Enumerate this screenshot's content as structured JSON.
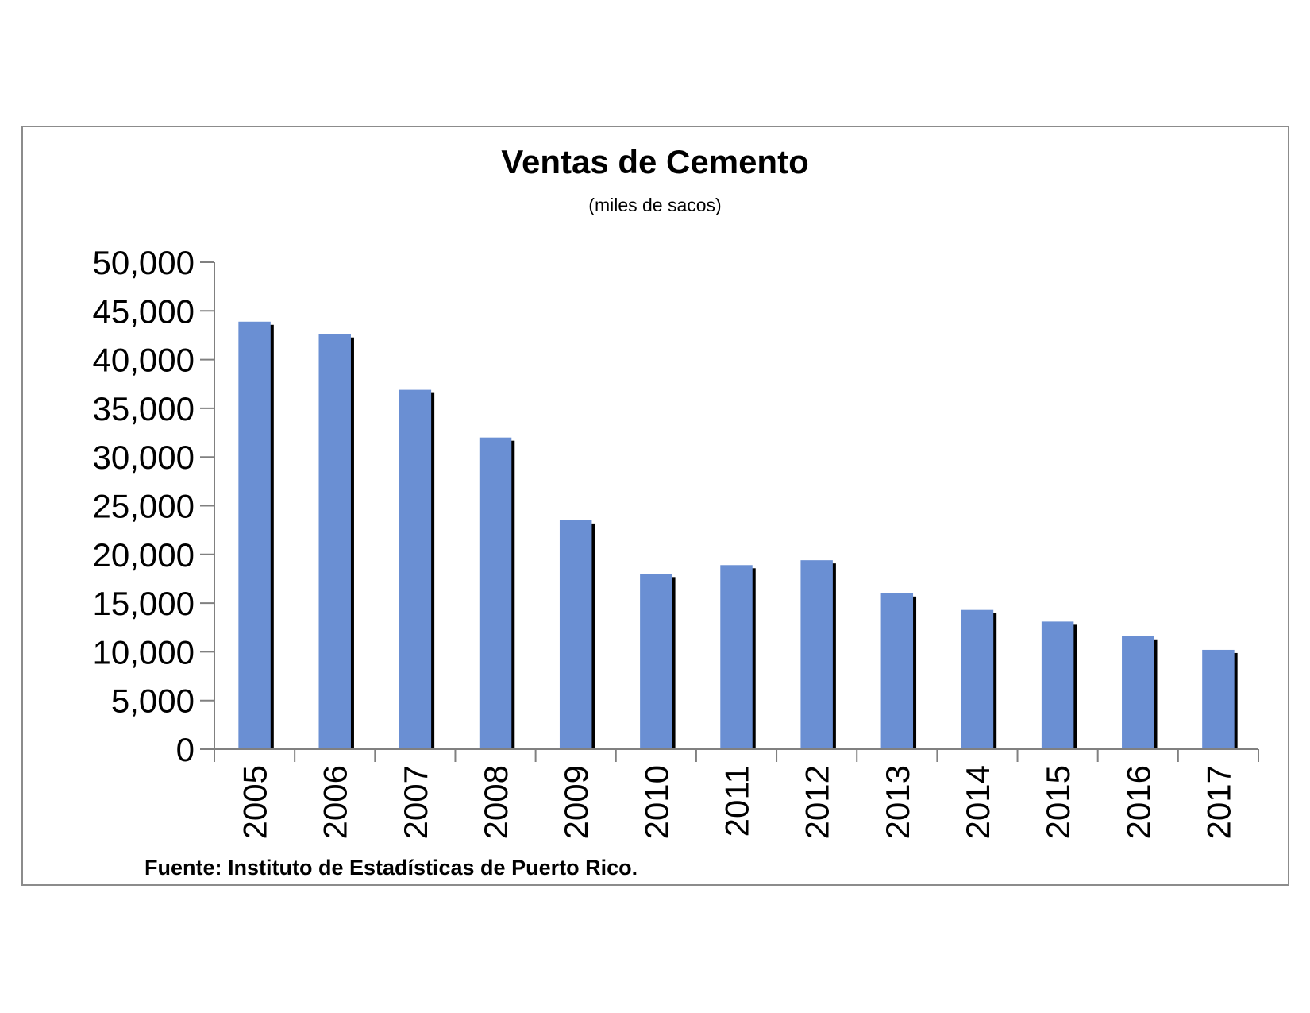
{
  "chart_data": {
    "type": "bar",
    "title": "Ventas de Cemento",
    "subtitle": "(miles de sacos)",
    "source": "Fuente: Instituto de Estadísticas de Puerto Rico.",
    "categories": [
      "2005",
      "2006",
      "2007",
      "2008",
      "2009",
      "2010",
      "2011",
      "2012",
      "2013",
      "2014",
      "2015",
      "2016",
      "2017"
    ],
    "values": [
      43900,
      42600,
      36900,
      32000,
      23500,
      18000,
      18900,
      19400,
      16000,
      14300,
      13100,
      11600,
      10200
    ],
    "ylim": [
      0,
      50000
    ],
    "yticks": [
      0,
      5000,
      10000,
      15000,
      20000,
      25000,
      30000,
      35000,
      40000,
      45000,
      50000
    ],
    "ytick_labels": [
      "0",
      "5,000",
      "10,000",
      "15,000",
      "20,000",
      "25,000",
      "30,000",
      "35,000",
      "40,000",
      "45,000",
      "50,000"
    ],
    "bar_color": "#6a8fd3",
    "shadow_color": "#000000",
    "grid": false,
    "legend": "none"
  }
}
